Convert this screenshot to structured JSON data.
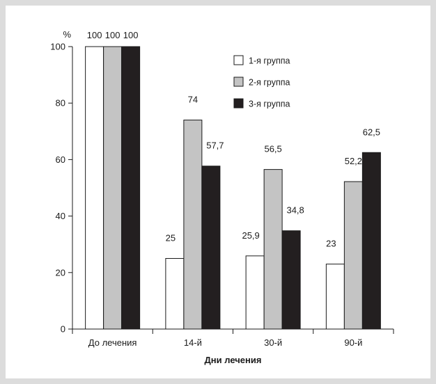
{
  "chart_data": {
    "type": "bar",
    "title": "",
    "ylabel": "%",
    "xlabel": "Дни лечения",
    "ylim": [
      0,
      100
    ],
    "yticks": [
      0,
      20,
      40,
      60,
      80,
      100
    ],
    "categories": [
      "До лечения",
      "14-й",
      "30-й",
      "90-й"
    ],
    "series": [
      {
        "name": "1-я группа",
        "color": "#ffffff",
        "values": [
          100,
          25,
          25.9,
          23
        ],
        "labels": [
          "100",
          "25",
          "25,9",
          "23"
        ]
      },
      {
        "name": "2-я группа",
        "color": "#c4c4c4",
        "values": [
          100,
          74,
          56.5,
          52.2
        ],
        "labels": [
          "100",
          "74",
          "56,5",
          "52,2"
        ]
      },
      {
        "name": "3-я группа",
        "color": "#231f20",
        "values": [
          100,
          57.7,
          34.8,
          62.5
        ],
        "labels": [
          "100",
          "57,7",
          "34,8",
          "62,5"
        ]
      }
    ],
    "legend_position": "top-right",
    "grid": false
  }
}
